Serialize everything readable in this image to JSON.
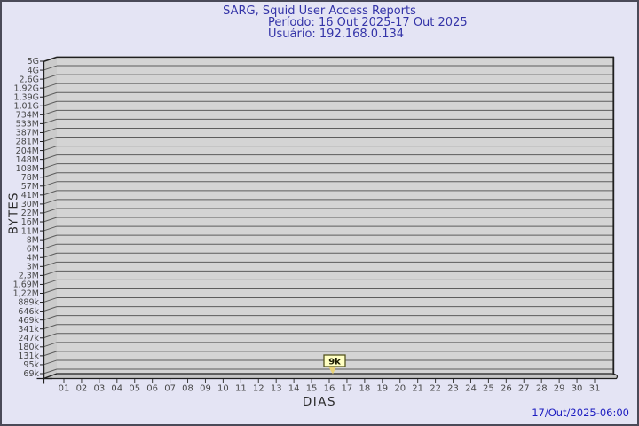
{
  "header": {
    "title": "SARG, Squid User Access Reports",
    "period": "Período: 16 Out 2025-17 Out 2025",
    "user": "Usuário: 192.168.0.134"
  },
  "footer": {
    "timestamp": "17/Out/2025-06:00"
  },
  "chart_data": {
    "type": "bar",
    "title": "SARG, Squid User Access Reports",
    "subtitle": "Período: 16 Out 2025-17 Out 2025 / Usuário: 192.168.0.134",
    "xlabel": "DIAS",
    "ylabel": "BYTES",
    "y_scale": "log",
    "ylim": [
      "69k",
      "5G"
    ],
    "grid": "horizontal",
    "y_tick_labels": [
      "5G",
      "4G",
      "2,6G",
      "1,92G",
      "1,39G",
      "1,01G",
      "734M",
      "533M",
      "387M",
      "281M",
      "204M",
      "148M",
      "108M",
      "78M",
      "57M",
      "41M",
      "30M",
      "22M",
      "16M",
      "11M",
      "8M",
      "6M",
      "4M",
      "3M",
      "2,3M",
      "1,69M",
      "1,22M",
      "889k",
      "646k",
      "469k",
      "341k",
      "247k",
      "180k",
      "131k",
      "95k",
      "69k"
    ],
    "x_tick_labels": [
      "01",
      "02",
      "03",
      "04",
      "05",
      "06",
      "07",
      "08",
      "09",
      "10",
      "11",
      "12",
      "13",
      "14",
      "15",
      "16",
      "17",
      "18",
      "19",
      "20",
      "21",
      "22",
      "23",
      "24",
      "25",
      "26",
      "27",
      "28",
      "29",
      "30",
      "31"
    ],
    "series": [
      {
        "name": "192.168.0.134",
        "points": [
          {
            "day": "16",
            "bytes_label": "9k"
          }
        ]
      }
    ]
  },
  "colors": {
    "background": "#e4e4f4",
    "page_border": "#4a4a58",
    "plot_fill": "#d4d4d4",
    "grid_line": "#5c5c5c",
    "wall_fill": "#cbcbcb",
    "floor_fill": "#c5c5c5",
    "edge": "#1f1f1f",
    "title_text": "#3434a8",
    "timestamp_text": "#1b1bc0",
    "tick_text": "#474747",
    "axis_title_text": "#2b2b2b",
    "annotation_fill": "#ffffc2",
    "annotation_border": "#55551e",
    "annotation_text": "#1a1a00",
    "annotation_pointer": "#e9d377"
  }
}
